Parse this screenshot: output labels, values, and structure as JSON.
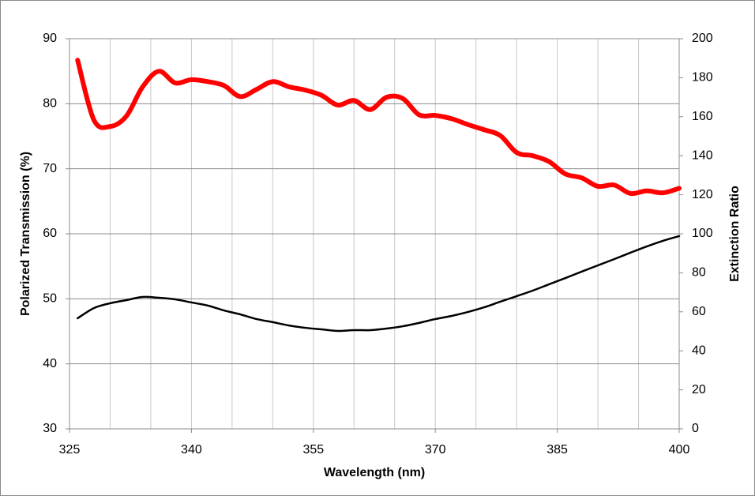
{
  "chart_data": {
    "type": "line",
    "x_label": "Wavelength (nm)",
    "y_label": "Polarized Transmission (%)",
    "y2_label": "Extinction Ratio",
    "x": [
      326,
      328,
      330,
      332,
      334,
      336,
      338,
      340,
      342,
      344,
      346,
      348,
      350,
      352,
      354,
      356,
      358,
      360,
      362,
      364,
      366,
      368,
      370,
      372,
      374,
      376,
      378,
      380,
      382,
      384,
      386,
      388,
      390,
      392,
      394,
      396,
      398,
      400
    ],
    "series": [
      {
        "name": "Polarized Transmission (%)",
        "color": "#ff0000",
        "axis": "y",
        "values": [
          86.7,
          77.5,
          76.5,
          78.1,
          82.6,
          85.0,
          83.2,
          83.7,
          83.4,
          82.8,
          81.1,
          82.2,
          83.4,
          82.6,
          82.1,
          81.3,
          79.8,
          80.5,
          79.1,
          81.0,
          80.8,
          78.3,
          78.2,
          77.7,
          76.8,
          76.0,
          75.1,
          72.5,
          72.0,
          71.1,
          69.2,
          68.6,
          67.3,
          67.5,
          66.2,
          66.6,
          66.3,
          67.0
        ]
      },
      {
        "name": "Extinction Ratio",
        "color": "#000000",
        "axis": "y2",
        "values": [
          56.7,
          61.9,
          64.4,
          66.0,
          67.6,
          67.2,
          66.4,
          64.8,
          63.2,
          60.7,
          58.7,
          56.3,
          54.7,
          53.0,
          51.8,
          51.0,
          50.2,
          50.6,
          50.6,
          51.4,
          52.6,
          54.3,
          56.3,
          57.9,
          59.9,
          62.3,
          65.2,
          68.0,
          70.9,
          74.1,
          77.3,
          80.6,
          83.8,
          87.0,
          90.3,
          93.5,
          96.4,
          98.8
        ]
      }
    ],
    "xlim": [
      325,
      400
    ],
    "xticks": [
      325,
      340,
      355,
      370,
      385,
      400
    ],
    "xgrid": [
      330,
      335,
      340,
      345,
      350,
      355,
      360,
      365,
      370,
      375,
      380,
      385,
      390,
      395,
      400
    ],
    "ylim": [
      30,
      90
    ],
    "yticks": [
      30,
      40,
      50,
      60,
      70,
      80,
      90
    ],
    "y2lim": [
      0,
      200
    ],
    "y2ticks": [
      0,
      20,
      40,
      60,
      80,
      100,
      120,
      140,
      160,
      180,
      200
    ],
    "grid": true
  }
}
